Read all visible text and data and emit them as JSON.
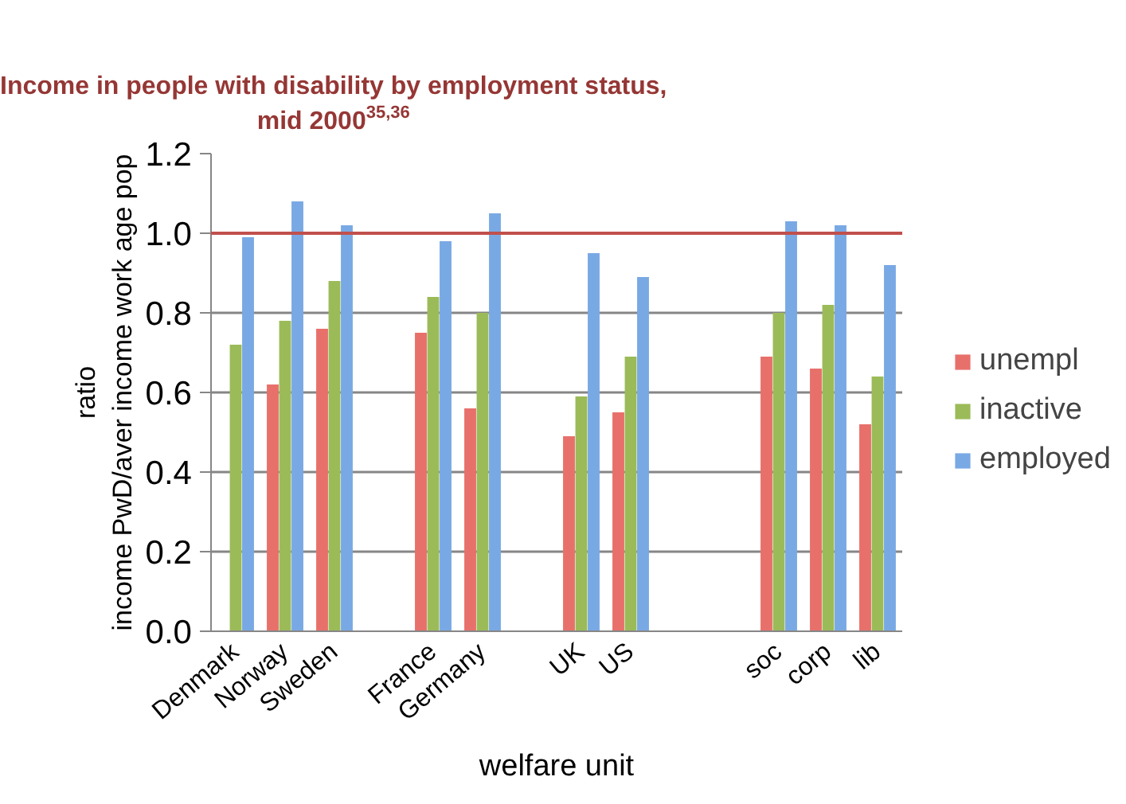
{
  "chart_data": {
    "type": "bar",
    "title": "Income in people with disability by employment status, mid 2000$^{35,36}$",
    "xlabel": "welfare unit",
    "ylabel": "ratio\nincome PwD/aver income work age pop",
    "categories": [
      "Denmark",
      "Norway",
      "Sweden",
      null,
      "France",
      "Germany",
      null,
      "UK",
      "US",
      null,
      null,
      "soc",
      "corp",
      "lib"
    ],
    "series": [
      {
        "name": "unempl",
        "color": "#e8706b",
        "values": [
          null,
          0.62,
          0.76,
          null,
          0.75,
          0.56,
          null,
          0.49,
          0.55,
          null,
          null,
          0.69,
          0.66,
          0.52
        ]
      },
      {
        "name": "inactive",
        "color": "#9bbb59",
        "values": [
          0.72,
          0.78,
          0.88,
          null,
          0.84,
          0.8,
          null,
          0.59,
          0.69,
          null,
          null,
          0.8,
          0.82,
          0.64
        ]
      },
      {
        "name": "employed",
        "color": "#79a9e4",
        "values": [
          0.99,
          1.08,
          1.02,
          null,
          0.98,
          1.05,
          null,
          0.95,
          0.89,
          null,
          null,
          1.03,
          1.02,
          0.92
        ]
      }
    ],
    "ylim": [
      0,
      1.2
    ],
    "yticks": [
      {
        "value": 0,
        "label": "0.0"
      },
      0.2,
      0.4,
      0.6,
      0.8,
      {
        "value": 1,
        "label": "1.0"
      },
      1.2
    ],
    "ref_lines": [
      {
        "axis": "y",
        "value": 1.0,
        "color": "#c0504d"
      }
    ],
    "grid": "y",
    "legend": "right"
  }
}
